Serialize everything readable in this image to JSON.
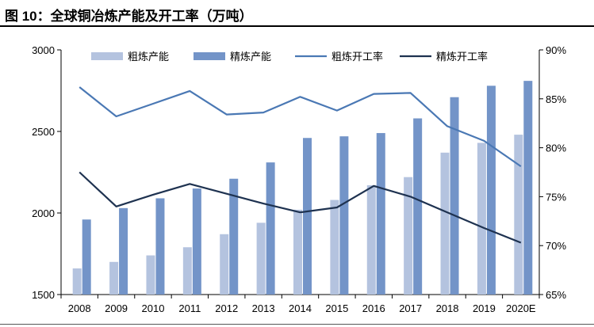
{
  "figure": {
    "title": "图 10：全球铜冶炼产能及开工率（万吨）"
  },
  "chart_data": {
    "type": "bar",
    "categories": [
      "2008",
      "2009",
      "2010",
      "2011",
      "2012",
      "2013",
      "2014",
      "2015",
      "2016",
      "2017",
      "2018",
      "2019",
      "2020E"
    ],
    "series": [
      {
        "name": "粗炼产能",
        "type": "bar",
        "axis": "left",
        "color": "#b4c3df",
        "values": [
          1660,
          1700,
          1740,
          1790,
          1870,
          1940,
          2020,
          2080,
          2170,
          2220,
          2370,
          2430,
          2480
        ]
      },
      {
        "name": "精炼产能",
        "type": "bar",
        "axis": "left",
        "color": "#7394c8",
        "values": [
          1960,
          2030,
          2090,
          2150,
          2210,
          2310,
          2460,
          2470,
          2490,
          2580,
          2710,
          2780,
          2810
        ]
      },
      {
        "name": "粗炼开工率",
        "type": "line",
        "axis": "right",
        "color": "#4a78b4",
        "values": [
          86.2,
          83.2,
          84.5,
          85.8,
          83.4,
          83.6,
          85.2,
          83.8,
          85.5,
          85.6,
          82.2,
          80.7,
          78.1
        ]
      },
      {
        "name": "精炼开工率",
        "type": "line",
        "axis": "right",
        "color": "#1e3250",
        "values": [
          77.5,
          74.0,
          75.2,
          76.3,
          75.3,
          74.3,
          73.4,
          73.9,
          76.1,
          75.0,
          73.4,
          71.8,
          70.3
        ]
      }
    ],
    "y_left": {
      "ylim": [
        1500,
        3000
      ],
      "ticks": [
        "1500",
        "2000",
        "2500",
        "3000"
      ],
      "tick_values": [
        1500,
        2000,
        2500,
        3000
      ]
    },
    "y_right": {
      "ylim": [
        65,
        90
      ],
      "ticks": [
        "65%",
        "70%",
        "75%",
        "80%",
        "85%",
        "90%"
      ],
      "tick_values": [
        65,
        70,
        75,
        80,
        85,
        90
      ]
    },
    "grid": false,
    "legend_position": "top"
  }
}
